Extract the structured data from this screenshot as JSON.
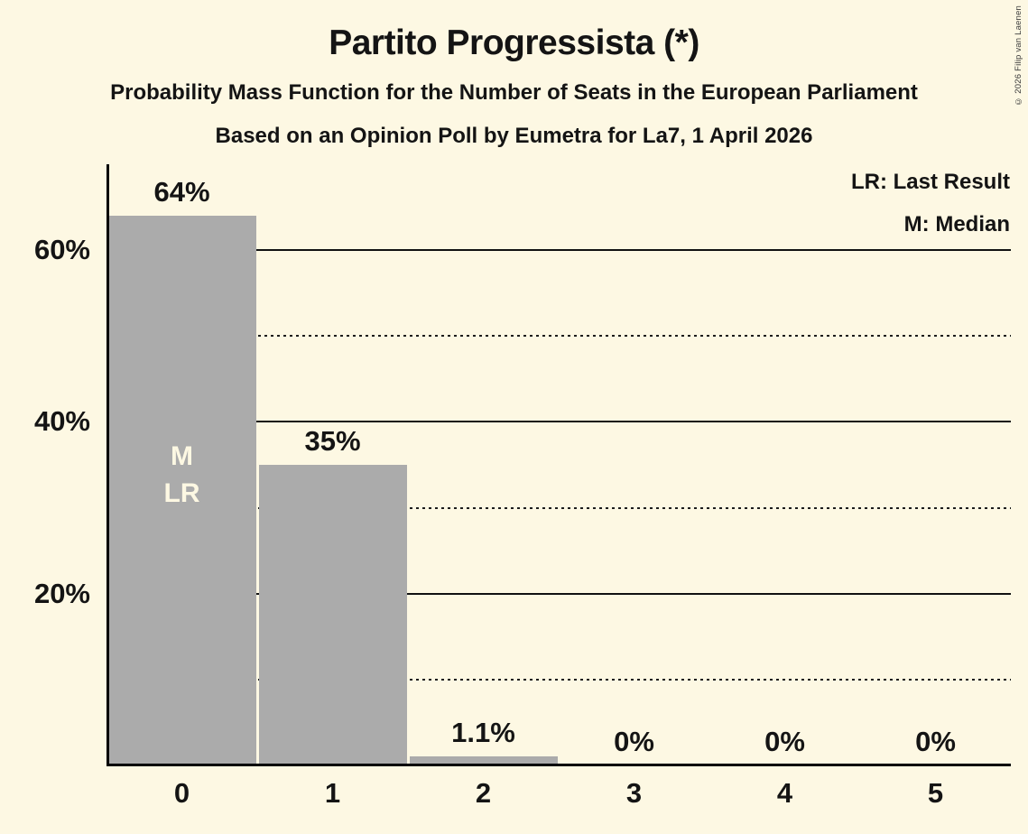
{
  "title": "Partito Progressista (*)",
  "subtitle1": "Probability Mass Function for the Number of Seats in the European Parliament",
  "subtitle2": "Based on an Opinion Poll by Eumetra for La7, 1 April 2026",
  "copyright": "© 2026 Filip van Laenen",
  "legend": {
    "lr": "LR: Last Result",
    "m": "M: Median"
  },
  "colors": {
    "background": "#FDF8E3",
    "bar": "#ABABAB",
    "text": "#141414",
    "bar_inner_label": "#FDF8E3"
  },
  "chart_data": {
    "type": "bar",
    "title": "Partito Progressista (*)",
    "categories": [
      "0",
      "1",
      "2",
      "3",
      "4",
      "5"
    ],
    "values": [
      64,
      35,
      1.1,
      0,
      0,
      0
    ],
    "bar_labels": [
      "64%",
      "35%",
      "1.1%",
      "0%",
      "0%",
      "0%"
    ],
    "xlabel": "",
    "ylabel": "",
    "ylim": [
      0,
      70
    ],
    "yticks": [
      {
        "value": 20,
        "label": "20%"
      },
      {
        "value": 40,
        "label": "40%"
      },
      {
        "value": 60,
        "label": "60%"
      }
    ],
    "gridlines": {
      "solid": [
        20,
        40,
        60
      ],
      "dotted": [
        10,
        30,
        50
      ]
    },
    "legend_position": "top-right",
    "annotations": [
      {
        "bar_index": 0,
        "text": "M\nLR",
        "meaning": "Median and Last Result at 0 seats"
      }
    ]
  }
}
